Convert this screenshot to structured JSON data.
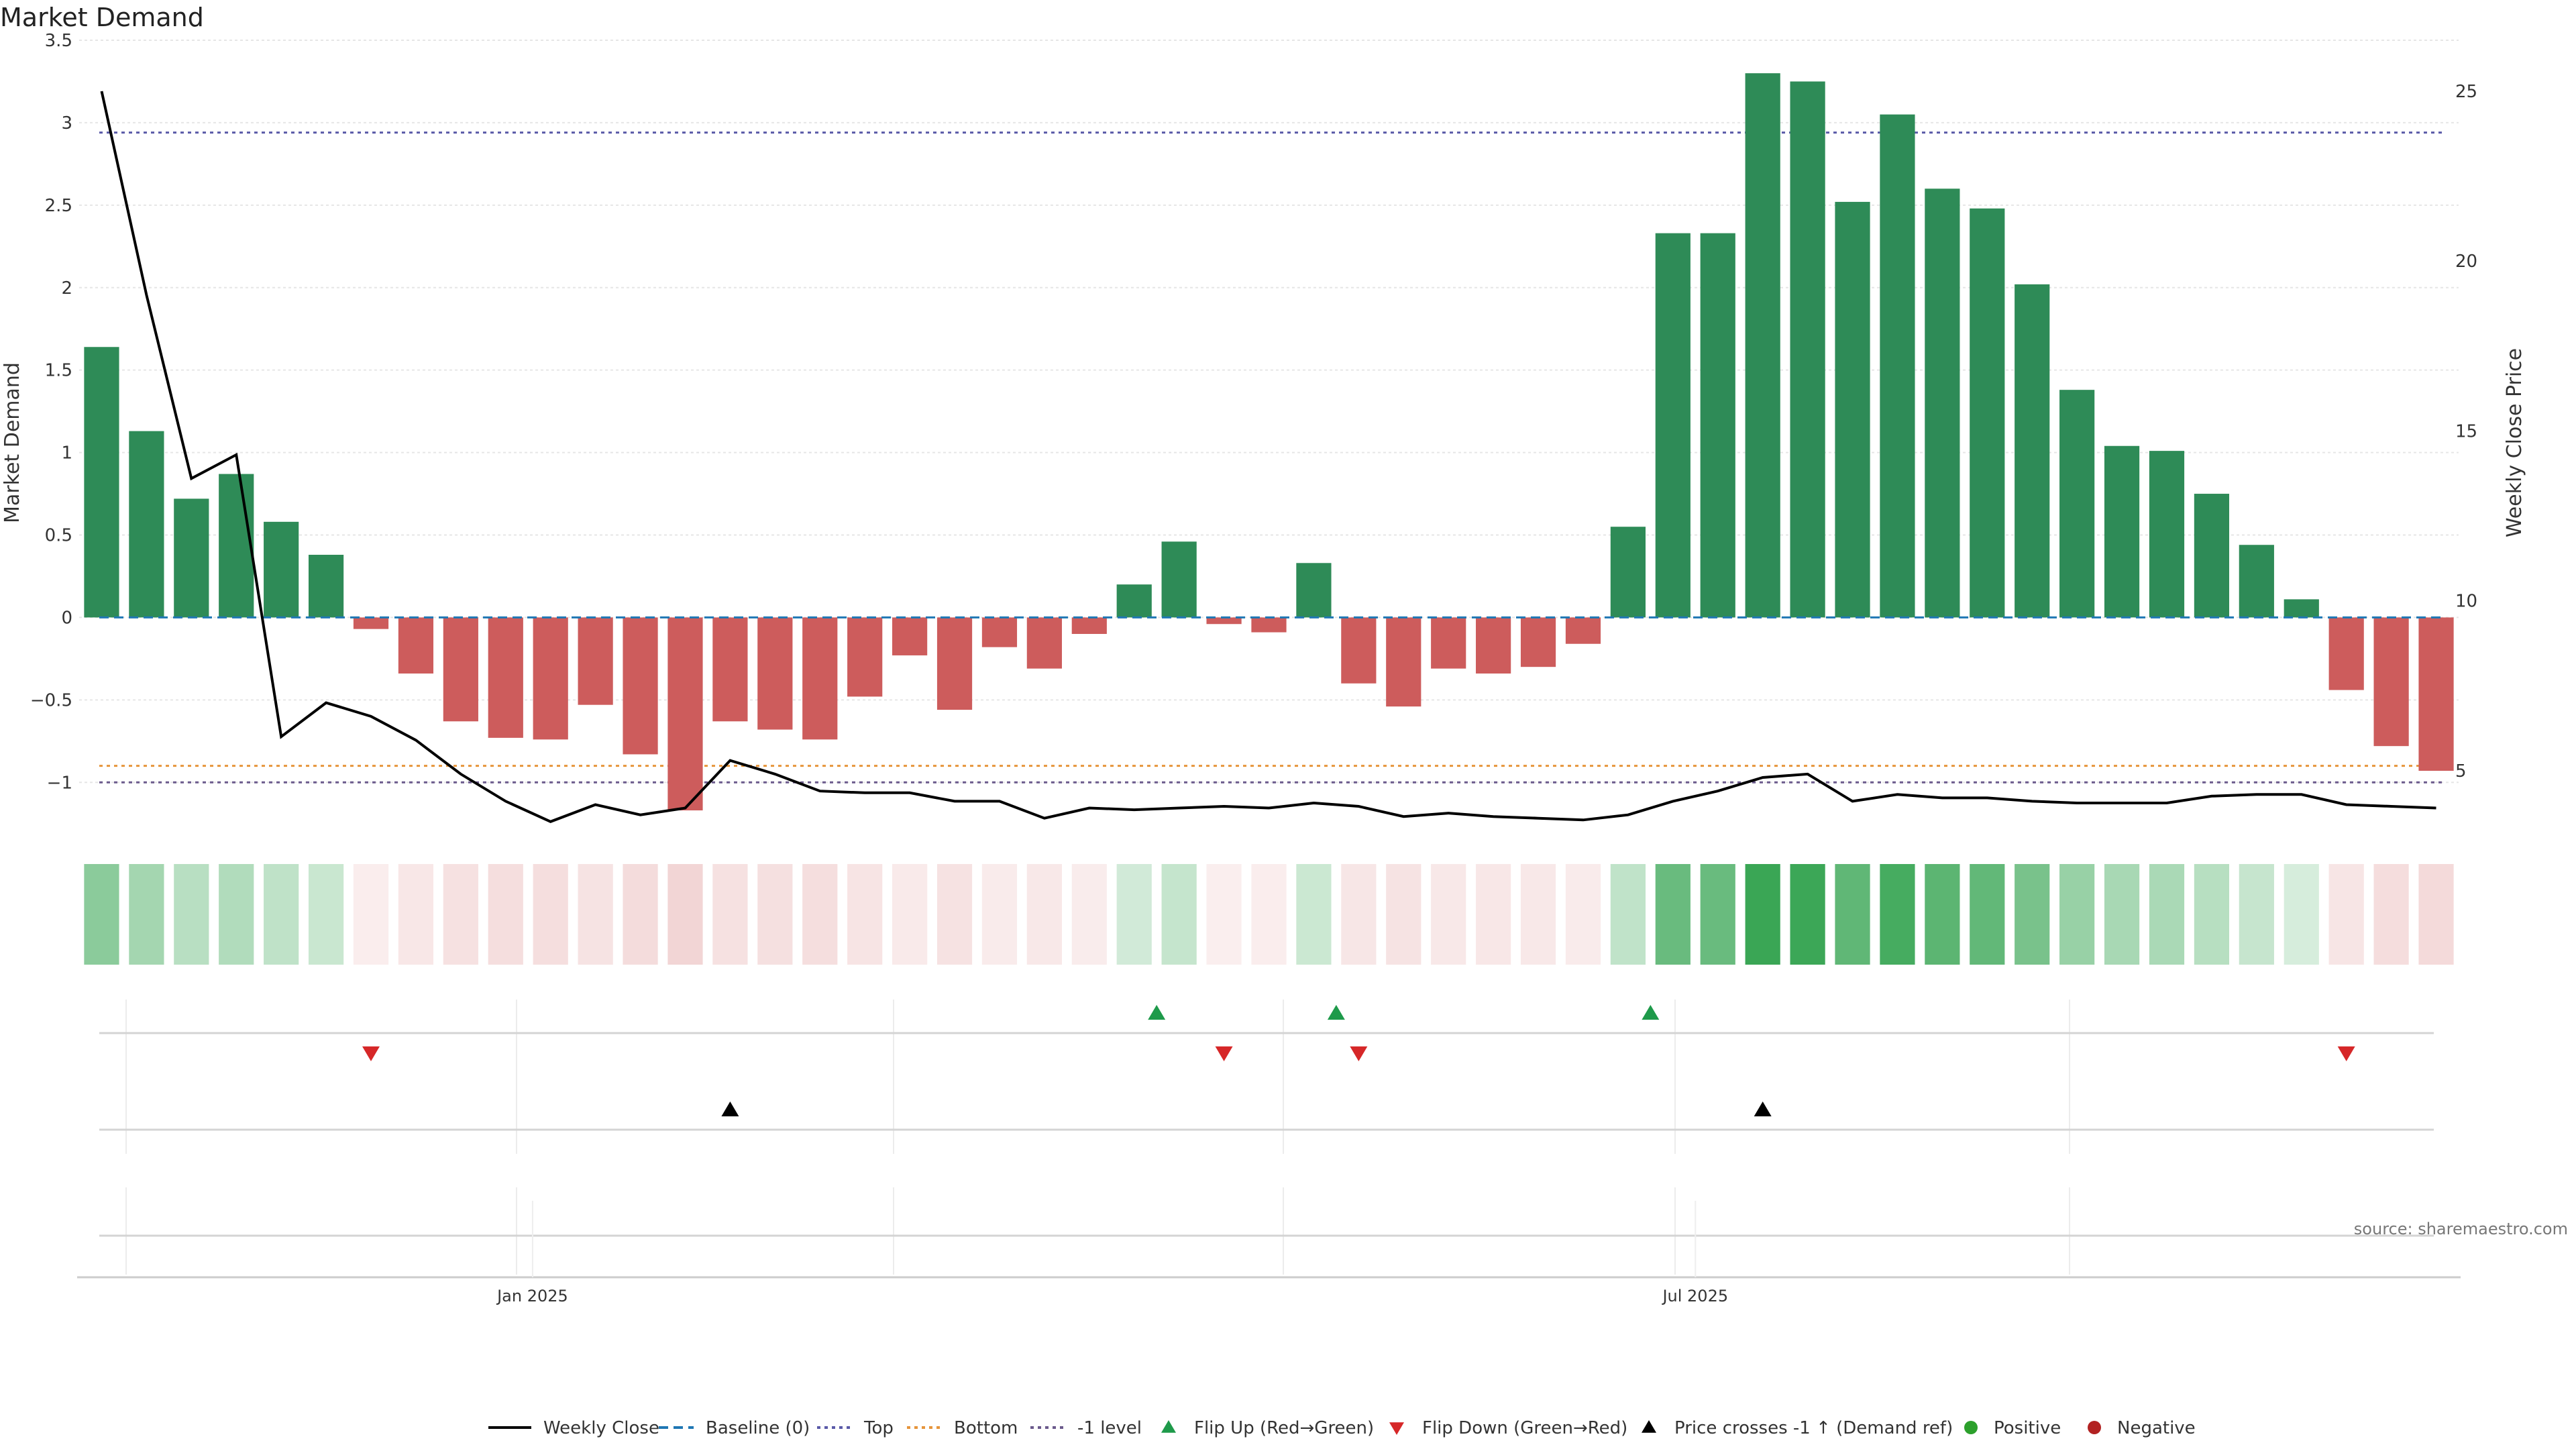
{
  "chart_data": {
    "type": "bar",
    "title": "Market Demand",
    "ylabel_left": "Market Demand",
    "ylabel_right": "Weekly Close Price",
    "ylim_left": [
      -1.3,
      3.5
    ],
    "yticks_left": [
      "3.5",
      "3",
      "2.5",
      "2",
      "1.5",
      "1",
      "0.5",
      "0",
      "−0.5",
      "−1"
    ],
    "ylim_right": [
      3.2,
      26.5
    ],
    "yticks_right": [
      "25",
      "20",
      "15",
      "10",
      "5"
    ],
    "x_tick_labels": [
      {
        "label": "Jan 2025",
        "week_index": 9.6
      },
      {
        "label": "Jul 2025",
        "week_index": 35.5
      }
    ],
    "reference_lines": {
      "baseline": 0,
      "top": 2.94,
      "bottom": -0.9,
      "minus_one": -1
    },
    "demand": [
      1.64,
      1.13,
      0.72,
      0.87,
      0.58,
      0.38,
      -0.07,
      -0.34,
      -0.63,
      -0.73,
      -0.74,
      -0.53,
      -0.83,
      -1.17,
      -0.63,
      -0.68,
      -0.74,
      -0.48,
      -0.23,
      -0.56,
      -0.18,
      -0.31,
      -0.1,
      0.2,
      0.46,
      -0.04,
      -0.09,
      0.33,
      -0.4,
      -0.54,
      -0.31,
      -0.34,
      -0.3,
      -0.16,
      0.55,
      2.33,
      2.33,
      3.3,
      3.25,
      2.52,
      3.05,
      2.6,
      2.48,
      2.02,
      1.38,
      1.04,
      1.01,
      0.75,
      0.44,
      0.11,
      -0.44,
      -0.78,
      -0.93
    ],
    "weekly_close": [
      25.0,
      19.0,
      13.6,
      14.3,
      6.0,
      7.0,
      6.6,
      5.9,
      4.9,
      4.1,
      3.5,
      4.0,
      3.7,
      3.9,
      5.3,
      4.9,
      4.4,
      4.35,
      4.35,
      4.1,
      4.1,
      3.6,
      3.9,
      3.85,
      3.9,
      3.95,
      3.9,
      4.05,
      3.95,
      3.65,
      3.75,
      3.65,
      3.6,
      3.55,
      3.7,
      4.1,
      4.4,
      4.8,
      4.9,
      4.1,
      4.3,
      4.2,
      4.2,
      4.1,
      4.05,
      4.05,
      4.05,
      4.25,
      4.3,
      4.3,
      4.0,
      3.95,
      3.9
    ],
    "flip_up_weeks": [
      23.5,
      27.5,
      34.5
    ],
    "flip_down_weeks": [
      6.0,
      25.0,
      28.0,
      50.0
    ],
    "price_cross_weeks": [
      14.0,
      37.0
    ],
    "legend": [
      "Weekly Close",
      "Baseline (0)",
      "Top",
      "Bottom",
      "-1 level",
      "Flip Up (Red→Green)",
      "Flip Down (Green→Red)",
      "Price crosses -1 ↑ (Demand ref)",
      "Positive",
      "Negative"
    ],
    "legend_position": "bottom-center"
  },
  "source": "source: sharemaestro.com",
  "colors": {
    "positive_bar": "#2e8b57",
    "negative_bar": "#cd5c5c",
    "weekly_close": "#000000",
    "baseline": "#1f77b4",
    "top": "#5a5aa8",
    "bottom": "#e6953b",
    "minus_one": "#6b5a8c",
    "flip_up": "#1e9a4a",
    "flip_down": "#d62728",
    "price_cross": "#000000",
    "positive_dot": "#2ca02c",
    "negative_dot": "#b22222",
    "strip_positive": "#3aa655",
    "strip_negative": "#cd5c5c"
  }
}
